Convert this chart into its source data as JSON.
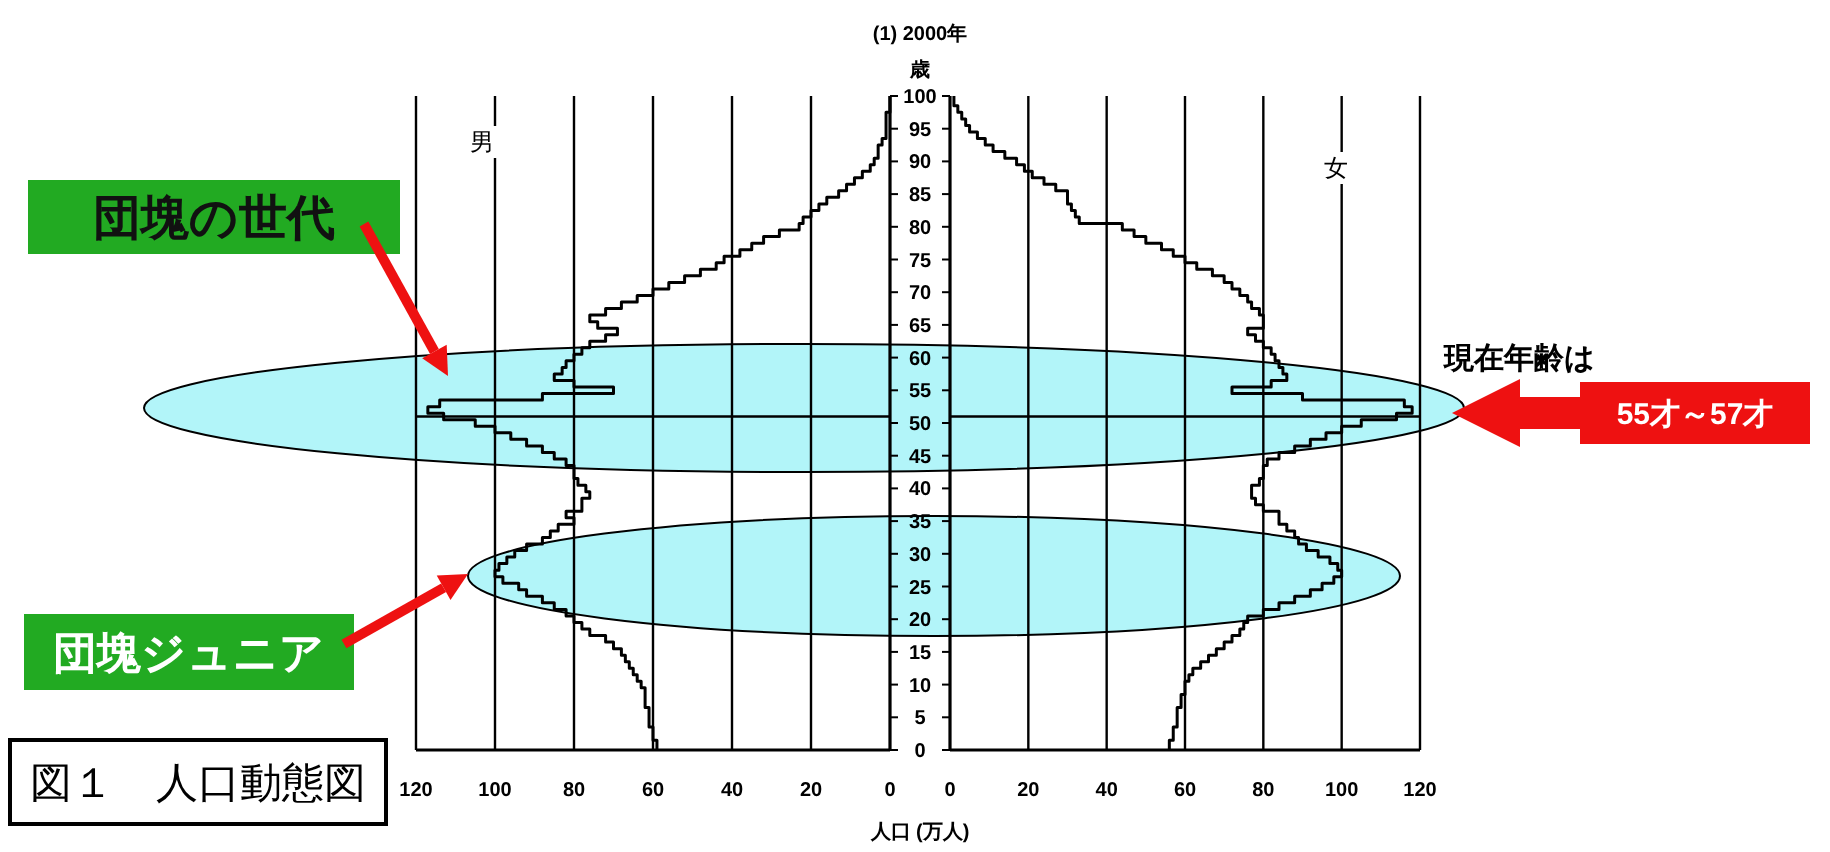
{
  "chart_data": [
    {
      "type": "step",
      "orientation": "horizontal",
      "title": "(1) 2000年",
      "ylabel": "歳",
      "xlabel": "人口 (万人)",
      "x": [
        0,
        1,
        2,
        3,
        4,
        5,
        6,
        7,
        8,
        9,
        10,
        11,
        12,
        13,
        14,
        15,
        16,
        17,
        18,
        19,
        20,
        21,
        22,
        23,
        24,
        25,
        26,
        27,
        28,
        29,
        30,
        31,
        32,
        33,
        34,
        35,
        36,
        37,
        38,
        39,
        40,
        41,
        42,
        43,
        44,
        45,
        46,
        47,
        48,
        49,
        50,
        51,
        52,
        53,
        54,
        55,
        56,
        57,
        58,
        59,
        60,
        61,
        62,
        63,
        64,
        65,
        66,
        67,
        68,
        69,
        70,
        71,
        72,
        73,
        74,
        75,
        76,
        77,
        78,
        79,
        80,
        81,
        82,
        83,
        84,
        85,
        86,
        87,
        88,
        89,
        90,
        91,
        92,
        93,
        94,
        95,
        96,
        97,
        98,
        99,
        100
      ],
      "series": [
        {
          "color": "#000000",
          "values": [
            59,
            59,
            60,
            60,
            61,
            61,
            61,
            62,
            62,
            62,
            63,
            64,
            65,
            66,
            67,
            68,
            70,
            72,
            76,
            78,
            80,
            82,
            85,
            88,
            92,
            94,
            98,
            100,
            99,
            97,
            95,
            92,
            88,
            86,
            84,
            80,
            82,
            78,
            78,
            76,
            77,
            79,
            80,
            80,
            82,
            85,
            88,
            92,
            96,
            100,
            105,
            113,
            117,
            114,
            88,
            70,
            80,
            85,
            83,
            82,
            80,
            78,
            76,
            72,
            69,
            74,
            76,
            72,
            68,
            64,
            60,
            56,
            52,
            48,
            44,
            42,
            38,
            35,
            32,
            28,
            23,
            22,
            20,
            18,
            16,
            13,
            11,
            9,
            7,
            5,
            4,
            3,
            3,
            2,
            1,
            1,
            1,
            1,
            0,
            0,
            0
          ]
        }
      ],
      "xlim": [
        120,
        0
      ],
      "xticks": [
        120,
        100,
        80,
        60,
        40,
        20,
        0
      ],
      "ylim": [
        0,
        100
      ],
      "yticks": [
        0,
        5,
        10,
        15,
        20,
        25,
        30,
        35,
        40,
        45,
        50,
        55,
        60,
        65,
        70,
        75,
        80,
        85,
        90,
        95,
        100
      ],
      "grid": "x",
      "ref_lines": [
        {
          "axis": "y",
          "value": 51
        }
      ],
      "annotations": [
        "男",
        "団塊の世代",
        "団塊ジュニア",
        "図１　人口動態図"
      ]
    },
    {
      "type": "step",
      "orientation": "horizontal",
      "x": [
        0,
        1,
        2,
        3,
        4,
        5,
        6,
        7,
        8,
        9,
        10,
        11,
        12,
        13,
        14,
        15,
        16,
        17,
        18,
        19,
        20,
        21,
        22,
        23,
        24,
        25,
        26,
        27,
        28,
        29,
        30,
        31,
        32,
        33,
        34,
        35,
        36,
        37,
        38,
        39,
        40,
        41,
        42,
        43,
        44,
        45,
        46,
        47,
        48,
        49,
        50,
        51,
        52,
        53,
        54,
        55,
        56,
        57,
        58,
        59,
        60,
        61,
        62,
        63,
        64,
        65,
        66,
        67,
        68,
        69,
        70,
        71,
        72,
        73,
        74,
        75,
        76,
        77,
        78,
        79,
        80,
        81,
        82,
        83,
        84,
        85,
        86,
        87,
        88,
        89,
        90,
        91,
        92,
        93,
        94,
        95,
        96,
        97,
        98,
        99,
        100
      ],
      "series": [
        {
          "color": "#000000",
          "values": [
            56,
            56,
            57,
            57,
            58,
            58,
            58,
            59,
            59,
            60,
            60,
            61,
            62,
            64,
            66,
            68,
            70,
            72,
            74,
            75,
            76,
            80,
            84,
            88,
            92,
            95,
            98,
            100,
            99,
            97,
            94,
            91,
            89,
            88,
            86,
            84,
            84,
            80,
            78,
            77,
            77,
            79,
            80,
            80,
            81,
            84,
            88,
            92,
            96,
            100,
            105,
            114,
            118,
            116,
            90,
            72,
            82,
            86,
            85,
            84,
            83,
            82,
            80,
            78,
            76,
            80,
            80,
            79,
            77,
            76,
            74,
            72,
            70,
            67,
            63,
            60,
            57,
            54,
            50,
            47,
            44,
            33,
            32,
            31,
            30,
            30,
            27,
            24,
            21,
            19,
            17,
            14,
            11,
            9,
            7,
            5,
            4,
            3,
            2,
            1,
            1
          ]
        }
      ],
      "xlim": [
        0,
        120
      ],
      "xticks": [
        0,
        20,
        40,
        60,
        80,
        100,
        120
      ],
      "ylim": [
        0,
        100
      ],
      "yticks": [
        0,
        5,
        10,
        15,
        20,
        25,
        30,
        35,
        40,
        45,
        50,
        55,
        60,
        65,
        70,
        75,
        80,
        85,
        90,
        95,
        100
      ],
      "grid": "x",
      "ref_lines": [
        {
          "axis": "y",
          "value": 51
        }
      ],
      "tick_labels": "x",
      "annotations": [
        "女",
        "現在年齢は",
        "55才～57才"
      ]
    }
  ]
}
